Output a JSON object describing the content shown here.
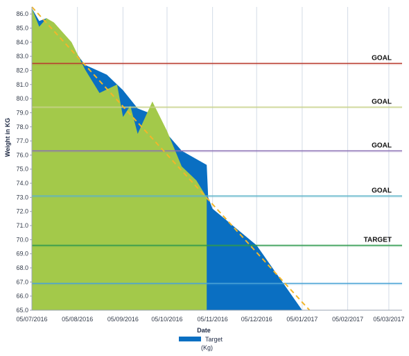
{
  "chart_data": {
    "type": "area",
    "xlabel": "Date",
    "ylabel": "Weight in KG",
    "ylim": [
      65.0,
      86.5
    ],
    "y_ticks": [
      65.0,
      66.0,
      67.0,
      68.0,
      69.0,
      70.0,
      71.0,
      72.0,
      73.0,
      74.0,
      75.0,
      76.0,
      77.0,
      78.0,
      79.0,
      80.0,
      81.0,
      82.0,
      83.0,
      84.0,
      85.0,
      86.0
    ],
    "y_tick_labels": [
      "65.0",
      "66.0",
      "67.0",
      "68.0",
      "69.0",
      "70.0",
      "71.0",
      "72.0",
      "73.0",
      "74.0",
      "75.0",
      "76.0",
      "77.0",
      "78.0",
      "79.0",
      "80.0",
      "81.0",
      "82.0",
      "83.0",
      "84.0",
      "85.0",
      "86.0"
    ],
    "x_ticks": [
      "05/07/2016",
      "05/08/2016",
      "05/09/2016",
      "05/10/2016",
      "05/11/2016",
      "05/12/2016",
      "05/01/2017",
      "05/02/2017",
      "05/03/2017"
    ],
    "x_tick_labels": [
      "05/07/2016",
      "05/08/2016",
      "05/09/2016",
      "05/10/2016",
      "05/11/2016",
      "05/12/2016",
      "05/01/2017",
      "05/02/2017",
      "05/03/2017"
    ],
    "x_range": [
      "05/07/2016",
      "14/03/2017"
    ],
    "grid": {
      "vertical": true,
      "horizontal": false
    },
    "legend": {
      "position": "bottom",
      "entries": [
        {
          "label": "Target",
          "sublabel": "(Kg)",
          "color": "#0a6fc2"
        }
      ]
    },
    "series": [
      {
        "name": "Target",
        "kind": "area",
        "color": "#0a6fc2",
        "points": [
          [
            "05/07/2016",
            86.4
          ],
          [
            "10/07/2016",
            85.5
          ],
          [
            "15/07/2016",
            85.7
          ],
          [
            "20/07/2016",
            85.1
          ],
          [
            "01/08/2016",
            83.7
          ],
          [
            "10/08/2016",
            82.4
          ],
          [
            "25/08/2016",
            81.7
          ],
          [
            "05/09/2016",
            80.6
          ],
          [
            "15/09/2016",
            79.3
          ],
          [
            "25/09/2016",
            78.9
          ],
          [
            "05/10/2016",
            77.5
          ],
          [
            "15/10/2016",
            76.3
          ],
          [
            "01/11/2016",
            75.3
          ],
          [
            "02/11/2016",
            73.0
          ],
          [
            "05/11/2016",
            72.2
          ],
          [
            "05/12/2016",
            69.6
          ],
          [
            "05/01/2017",
            65.0
          ]
        ]
      },
      {
        "kind": "area",
        "color": "#a3c94a",
        "points": [
          [
            "05/07/2016",
            86.4
          ],
          [
            "10/07/2016",
            85.1
          ],
          [
            "15/07/2016",
            85.7
          ],
          [
            "20/07/2016",
            85.4
          ],
          [
            "01/08/2016",
            84.0
          ],
          [
            "10/08/2016",
            82.1
          ],
          [
            "20/08/2016",
            80.4
          ],
          [
            "01/09/2016",
            81.0
          ],
          [
            "05/09/2016",
            78.7
          ],
          [
            "10/09/2016",
            79.5
          ],
          [
            "15/09/2016",
            77.5
          ],
          [
            "25/09/2016",
            79.8
          ],
          [
            "05/10/2016",
            77.7
          ],
          [
            "15/10/2016",
            75.2
          ],
          [
            "25/10/2016",
            74.2
          ],
          [
            "01/11/2016",
            73.0
          ],
          [
            "01/11/2016",
            65.0
          ]
        ]
      },
      {
        "kind": "trend-line",
        "color": "#f2b62a",
        "points": [
          [
            "05/07/2016",
            86.5
          ],
          [
            "10/01/2017",
            65.0
          ]
        ]
      }
    ],
    "reference_lines": [
      {
        "label": "GOAL",
        "value": 82.5,
        "color": "#b83a2e"
      },
      {
        "label": "GOAL",
        "value": 79.4,
        "color": "#c8d28a"
      },
      {
        "label": "GOAL",
        "value": 76.3,
        "color": "#8a6fb5"
      },
      {
        "label": "GOAL",
        "value": 73.1,
        "color": "#5db3c9"
      },
      {
        "label": "TARGET",
        "value": 69.6,
        "color": "#2f9a4e"
      },
      {
        "label": "",
        "value": 66.9,
        "color": "#4aa3d6"
      }
    ]
  }
}
